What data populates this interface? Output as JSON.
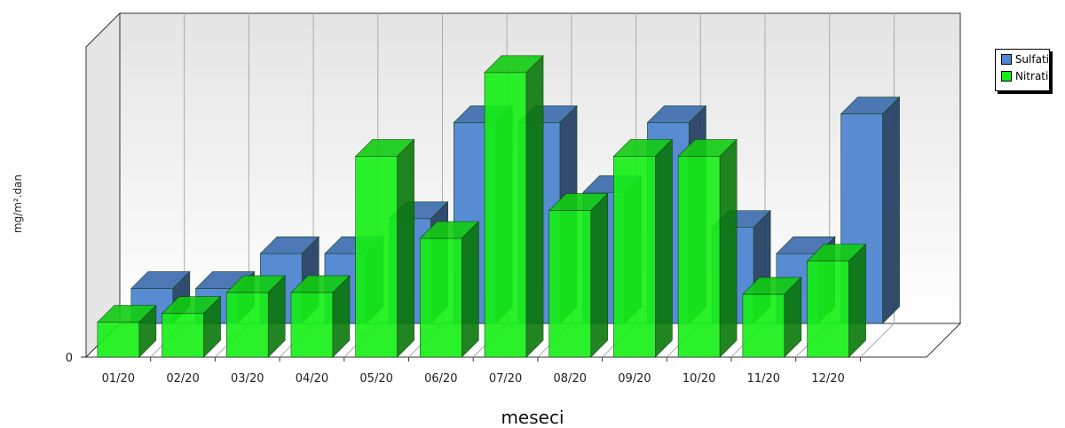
{
  "chart_data": {
    "type": "bar",
    "categories": [
      "01/20",
      "02/20",
      "03/20",
      "04/20",
      "05/20",
      "06/20",
      "07/20",
      "08/20",
      "09/20",
      "10/20",
      "11/20",
      "12/20"
    ],
    "series": [
      {
        "name": "Sulfati",
        "values": [
          2.0,
          2.0,
          4.0,
          4.0,
          6.0,
          11.5,
          11.5,
          7.5,
          11.5,
          5.5,
          4.0,
          12.0
        ],
        "color": "#4f86d1"
      },
      {
        "name": "Nitrati",
        "values": [
          2.0,
          2.5,
          3.7,
          3.7,
          11.5,
          6.8,
          16.3,
          8.4,
          11.5,
          11.5,
          3.6,
          5.5
        ],
        "color": "#14f014"
      }
    ],
    "title": "",
    "xlabel": "meseci",
    "ylabel": "mg/m².dan",
    "y_ticks": [
      "0"
    ],
    "ylim": [
      0,
      17
    ],
    "legend_position": "top-right",
    "three_d": true,
    "grid": "vertical"
  }
}
